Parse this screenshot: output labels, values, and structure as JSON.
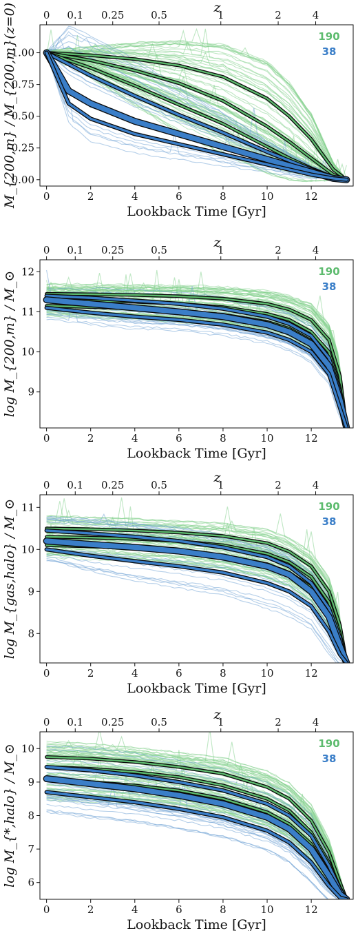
{
  "colors": {
    "green": "#5dbb6e",
    "blue": "#3a7ec8",
    "thin_green": "#7fcf8a",
    "thin_blue": "#6c9fd4",
    "outline": "#0a0a0a"
  },
  "chart_data": [
    {
      "type": "line",
      "xlabel": "Lookback Time [Gyr]",
      "ylabel": "M_{200,m} / M_{200,m}(z=0)",
      "top_axis_label": "z",
      "top_ticks": [
        "0",
        "0.1",
        "0.25",
        "0.5",
        "1",
        "2",
        "4"
      ],
      "top_tick_x": [
        0,
        1.3,
        3.0,
        5.1,
        7.9,
        10.5,
        12.2
      ],
      "xlim": [
        -0.3,
        13.9
      ],
      "ylim": [
        -0.05,
        1.22
      ],
      "xticks": [
        0,
        2,
        4,
        6,
        8,
        10,
        12
      ],
      "yticks": [
        0.0,
        0.25,
        0.5,
        0.75,
        1.0
      ],
      "ytick_labels": [
        "0.00",
        "0.25",
        "0.50",
        "0.75",
        "1.00"
      ],
      "legend": [
        {
          "label": "190",
          "color": "#5dbb6e"
        },
        {
          "label": "38",
          "color": "#3a7ec8"
        }
      ],
      "series": [
        {
          "group": "green",
          "role": "upper",
          "x": [
            0,
            2,
            4,
            6,
            8,
            10,
            11,
            12,
            13,
            13.6
          ],
          "y": [
            1.0,
            0.98,
            0.95,
            0.9,
            0.81,
            0.64,
            0.5,
            0.32,
            0.08,
            0.0
          ]
        },
        {
          "group": "green",
          "role": "median",
          "x": [
            0,
            2,
            4,
            6,
            8,
            10,
            11,
            12,
            13,
            13.6
          ],
          "y": [
            1.0,
            0.94,
            0.86,
            0.76,
            0.62,
            0.42,
            0.3,
            0.17,
            0.04,
            0.0
          ]
        },
        {
          "group": "green",
          "role": "lower",
          "x": [
            0,
            2,
            4,
            6,
            8,
            10,
            11,
            12,
            13,
            13.6
          ],
          "y": [
            1.0,
            0.88,
            0.74,
            0.59,
            0.44,
            0.26,
            0.17,
            0.09,
            0.02,
            0.0
          ]
        },
        {
          "group": "blue",
          "role": "upper",
          "x": [
            0,
            2,
            4,
            6,
            8,
            10,
            11,
            12,
            13,
            13.6
          ],
          "y": [
            1.0,
            0.82,
            0.66,
            0.51,
            0.37,
            0.22,
            0.15,
            0.08,
            0.02,
            0.0
          ]
        },
        {
          "group": "blue",
          "role": "median",
          "x": [
            0,
            1,
            2,
            4,
            6,
            8,
            10,
            11,
            12,
            13,
            13.6
          ],
          "y": [
            1.0,
            0.7,
            0.6,
            0.46,
            0.36,
            0.26,
            0.16,
            0.11,
            0.06,
            0.01,
            0.0
          ]
        },
        {
          "group": "blue",
          "role": "lower",
          "x": [
            0,
            1,
            2,
            4,
            6,
            8,
            10,
            11,
            12,
            13,
            13.6
          ],
          "y": [
            1.0,
            0.6,
            0.48,
            0.36,
            0.28,
            0.2,
            0.12,
            0.08,
            0.04,
            0.01,
            0.0
          ]
        }
      ]
    },
    {
      "type": "line",
      "xlabel": "Lookback Time [Gyr]",
      "ylabel": "log M_{200,m} / M_⊙",
      "top_axis_label": "z",
      "top_ticks": [
        "0",
        "0.1",
        "0.25",
        "0.5",
        "1",
        "2",
        "4"
      ],
      "top_tick_x": [
        0,
        1.3,
        3.0,
        5.1,
        7.9,
        10.5,
        12.2
      ],
      "xlim": [
        -0.3,
        13.9
      ],
      "ylim": [
        8.1,
        12.3
      ],
      "xticks": [
        0,
        2,
        4,
        6,
        8,
        10,
        12
      ],
      "yticks": [
        9,
        10,
        11,
        12
      ],
      "ytick_labels": [
        "9",
        "10",
        "11",
        "12"
      ],
      "legend": [
        {
          "label": "190",
          "color": "#5dbb6e"
        },
        {
          "label": "38",
          "color": "#3a7ec8"
        }
      ],
      "series": [
        {
          "group": "green",
          "role": "upper",
          "x": [
            0,
            2,
            4,
            6,
            8,
            10,
            11,
            12,
            12.8,
            13.3,
            13.6
          ],
          "y": [
            11.45,
            11.44,
            11.42,
            11.39,
            11.33,
            11.2,
            11.06,
            10.8,
            10.3,
            9.4,
            8.1
          ]
        },
        {
          "group": "green",
          "role": "median",
          "x": [
            0,
            2,
            4,
            6,
            8,
            10,
            11,
            12,
            12.8,
            13.3,
            13.6
          ],
          "y": [
            11.3,
            11.28,
            11.25,
            11.2,
            11.12,
            10.95,
            10.8,
            10.5,
            10.0,
            9.1,
            8.1
          ]
        },
        {
          "group": "green",
          "role": "lower",
          "x": [
            0,
            2,
            4,
            6,
            8,
            10,
            11,
            12,
            12.8,
            13.3,
            13.6
          ],
          "y": [
            11.15,
            11.12,
            11.08,
            11.02,
            10.93,
            10.75,
            10.58,
            10.28,
            9.75,
            8.9,
            8.1
          ]
        },
        {
          "group": "blue",
          "role": "upper",
          "x": [
            0,
            2,
            4,
            6,
            8,
            10,
            11,
            12,
            12.8,
            13.3,
            13.6
          ],
          "y": [
            11.4,
            11.35,
            11.28,
            11.2,
            11.08,
            10.88,
            10.7,
            10.4,
            9.85,
            9.0,
            8.1
          ]
        },
        {
          "group": "blue",
          "role": "median",
          "x": [
            0,
            2,
            4,
            6,
            8,
            10,
            11,
            12,
            12.8,
            13.3,
            13.6
          ],
          "y": [
            11.3,
            11.2,
            11.1,
            11.0,
            10.88,
            10.68,
            10.5,
            10.2,
            9.65,
            8.8,
            8.1
          ]
        },
        {
          "group": "blue",
          "role": "lower",
          "x": [
            0,
            2,
            4,
            6,
            8,
            10,
            11,
            12,
            12.8,
            13.3,
            13.6
          ],
          "y": [
            11.1,
            10.98,
            10.88,
            10.8,
            10.68,
            10.48,
            10.3,
            10.0,
            9.45,
            8.6,
            8.1
          ]
        }
      ]
    },
    {
      "type": "line",
      "xlabel": "Lookback Time [Gyr]",
      "ylabel": "log M_{gas,halo} / M_⊙",
      "top_axis_label": "z",
      "top_ticks": [
        "0",
        "0.1",
        "0.25",
        "0.5",
        "1",
        "2",
        "4"
      ],
      "top_tick_x": [
        0,
        1.3,
        3.0,
        5.1,
        7.9,
        10.5,
        12.2
      ],
      "xlim": [
        -0.3,
        13.9
      ],
      "ylim": [
        7.3,
        11.3
      ],
      "xticks": [
        0,
        2,
        4,
        6,
        8,
        10,
        12
      ],
      "yticks": [
        8,
        9,
        10,
        11
      ],
      "ytick_labels": [
        "8",
        "9",
        "10",
        "11"
      ],
      "legend": [
        {
          "label": "190",
          "color": "#5dbb6e"
        },
        {
          "label": "38",
          "color": "#3a7ec8"
        }
      ],
      "series": [
        {
          "group": "green",
          "role": "upper",
          "x": [
            0,
            2,
            4,
            6,
            8,
            10,
            11,
            12,
            12.8,
            13.3,
            13.6
          ],
          "y": [
            10.5,
            10.48,
            10.45,
            10.4,
            10.32,
            10.15,
            9.95,
            9.6,
            9.0,
            8.2,
            7.3
          ]
        },
        {
          "group": "green",
          "role": "median",
          "x": [
            0,
            2,
            4,
            6,
            8,
            10,
            11,
            12,
            12.8,
            13.3,
            13.6
          ],
          "y": [
            10.3,
            10.28,
            10.25,
            10.2,
            10.1,
            9.9,
            9.7,
            9.35,
            8.75,
            8.0,
            7.3
          ]
        },
        {
          "group": "green",
          "role": "lower",
          "x": [
            0,
            2,
            4,
            6,
            8,
            10,
            11,
            12,
            12.8,
            13.3,
            13.6
          ],
          "y": [
            10.1,
            10.07,
            10.03,
            9.97,
            9.86,
            9.65,
            9.45,
            9.1,
            8.5,
            7.8,
            7.3
          ]
        },
        {
          "group": "blue",
          "role": "upper",
          "x": [
            0,
            2,
            4,
            6,
            8,
            10,
            11,
            12,
            12.8,
            13.3,
            13.6
          ],
          "y": [
            10.45,
            10.38,
            10.3,
            10.2,
            10.05,
            9.82,
            9.6,
            9.2,
            8.6,
            7.9,
            7.3
          ]
        },
        {
          "group": "blue",
          "role": "median",
          "x": [
            0,
            2,
            4,
            6,
            8,
            10,
            11,
            12,
            12.8,
            13.3,
            13.6
          ],
          "y": [
            10.2,
            10.12,
            10.05,
            9.96,
            9.82,
            9.6,
            9.4,
            9.0,
            8.4,
            7.7,
            7.3
          ]
        },
        {
          "group": "blue",
          "role": "lower",
          "x": [
            0,
            2,
            4,
            6,
            8,
            10,
            11,
            12,
            12.8,
            13.3,
            13.6
          ],
          "y": [
            10.0,
            9.85,
            9.72,
            9.6,
            9.45,
            9.2,
            9.0,
            8.65,
            8.05,
            7.5,
            7.3
          ]
        }
      ]
    },
    {
      "type": "line",
      "xlabel": "Lookback Time [Gyr]",
      "ylabel": "log M_{*,halo} / M_⊙",
      "top_axis_label": "z",
      "top_ticks": [
        "0",
        "0.1",
        "0.25",
        "0.5",
        "1",
        "2",
        "4"
      ],
      "top_tick_x": [
        0,
        1.3,
        3.0,
        5.1,
        7.9,
        10.5,
        12.2
      ],
      "xlim": [
        -0.3,
        13.9
      ],
      "ylim": [
        5.5,
        10.5
      ],
      "xticks": [
        0,
        2,
        4,
        6,
        8,
        10,
        12
      ],
      "yticks": [
        6,
        7,
        8,
        9,
        10
      ],
      "ytick_labels": [
        "6",
        "7",
        "8",
        "9",
        "10"
      ],
      "legend": [
        {
          "label": "190",
          "color": "#5dbb6e"
        },
        {
          "label": "38",
          "color": "#3a7ec8"
        }
      ],
      "series": [
        {
          "group": "green",
          "role": "upper",
          "x": [
            0,
            2,
            4,
            6,
            8,
            10,
            11,
            12,
            12.8,
            13.3,
            13.6
          ],
          "y": [
            9.75,
            9.7,
            9.6,
            9.45,
            9.25,
            8.85,
            8.5,
            7.85,
            6.9,
            6.0,
            5.5
          ]
        },
        {
          "group": "green",
          "role": "median",
          "x": [
            0,
            2,
            4,
            6,
            8,
            10,
            11,
            12,
            12.8,
            13.3,
            13.6
          ],
          "y": [
            9.45,
            9.4,
            9.3,
            9.15,
            8.9,
            8.5,
            8.15,
            7.5,
            6.6,
            5.85,
            5.5
          ]
        },
        {
          "group": "green",
          "role": "lower",
          "x": [
            0,
            2,
            4,
            6,
            8,
            10,
            11,
            12,
            12.8,
            13.3,
            13.6
          ],
          "y": [
            9.05,
            9.0,
            8.9,
            8.75,
            8.5,
            8.1,
            7.75,
            7.15,
            6.3,
            5.7,
            5.5
          ]
        },
        {
          "group": "blue",
          "role": "upper",
          "x": [
            0,
            2,
            4,
            6,
            8,
            10,
            11,
            12,
            12.8,
            13.3,
            13.6
          ],
          "y": [
            9.45,
            9.35,
            9.2,
            9.0,
            8.75,
            8.35,
            8.0,
            7.4,
            6.5,
            5.8,
            5.5
          ]
        },
        {
          "group": "blue",
          "role": "median",
          "x": [
            0,
            2,
            4,
            6,
            8,
            10,
            11,
            12,
            12.8,
            13.3,
            13.6
          ],
          "y": [
            9.1,
            8.95,
            8.8,
            8.6,
            8.35,
            7.95,
            7.6,
            7.0,
            6.2,
            5.65,
            5.5
          ]
        },
        {
          "group": "blue",
          "role": "lower",
          "x": [
            0,
            2,
            4,
            6,
            8,
            10,
            11,
            12,
            12.8,
            13.3,
            13.6
          ],
          "y": [
            8.7,
            8.55,
            8.4,
            8.2,
            7.95,
            7.55,
            7.2,
            6.6,
            5.9,
            5.55,
            5.5
          ]
        }
      ]
    }
  ]
}
